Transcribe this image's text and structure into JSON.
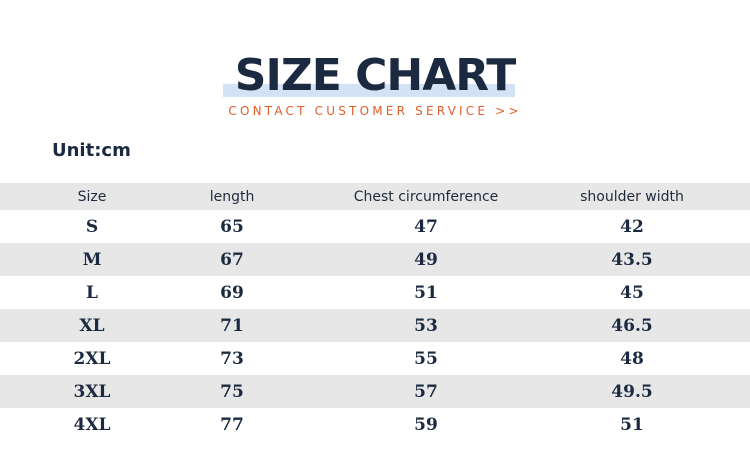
{
  "title": "SIZE CHART",
  "subtitle": "CONTACT CUSTOMER SERVICE >>",
  "unit_label": "Unit:cm",
  "colors": {
    "title": "#1b2a40",
    "title_highlight": "#d3e2f5",
    "subtitle": "#e35d2a",
    "row_shade": "#e7e7e7"
  },
  "table": {
    "headers": [
      "Size",
      "length",
      "Chest circumference",
      "shoulder width"
    ],
    "rows": [
      [
        "S",
        "65",
        "47",
        "42"
      ],
      [
        "M",
        "67",
        "49",
        "43.5"
      ],
      [
        "L",
        "69",
        "51",
        "45"
      ],
      [
        "XL",
        "71",
        "53",
        "46.5"
      ],
      [
        "2XL",
        "73",
        "55",
        "48"
      ],
      [
        "3XL",
        "75",
        "57",
        "49.5"
      ],
      [
        "4XL",
        "77",
        "59",
        "51"
      ]
    ]
  }
}
